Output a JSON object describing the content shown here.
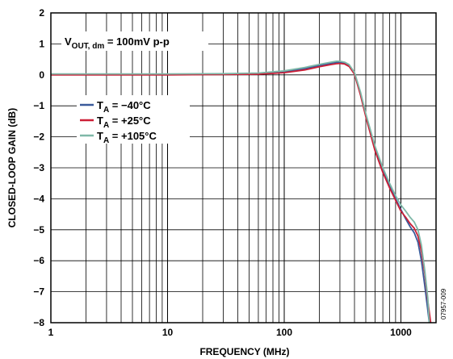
{
  "chart_data": {
    "type": "line",
    "title": "",
    "xlabel": "FREQUENCY (MHz)",
    "ylabel": "CLOSED-LOOP GAIN (dB)",
    "x_scale": "log",
    "xlim": [
      1,
      2000
    ],
    "ylim": [
      -8,
      2
    ],
    "x_ticks": [
      1,
      10,
      100,
      1000
    ],
    "x_tick_labels": [
      "1",
      "10",
      "100",
      "1000"
    ],
    "y_ticks": [
      2,
      1,
      0,
      -1,
      -2,
      -3,
      -4,
      -5,
      -6,
      -7,
      -8
    ],
    "y_tick_labels": [
      "2",
      "1",
      "0",
      "−1",
      "−2",
      "−3",
      "−4",
      "−5",
      "−6",
      "−7",
      "−8"
    ],
    "grid": true,
    "legend_position": "left-middle",
    "annotation": {
      "main": "V",
      "sub": "OUT, dm",
      "rest": " = 100mV p-p"
    },
    "figure_id": "07957-009",
    "series": [
      {
        "name": "T_A = −40°C",
        "label_main": "T",
        "label_sub": "A",
        "label_rest": " = −40°C",
        "color": "#3a5a9a",
        "points": [
          [
            1,
            0.02
          ],
          [
            3,
            0.02
          ],
          [
            10,
            0.02
          ],
          [
            30,
            0.03
          ],
          [
            60,
            0.04
          ],
          [
            100,
            0.1
          ],
          [
            150,
            0.2
          ],
          [
            200,
            0.3
          ],
          [
            250,
            0.37
          ],
          [
            280,
            0.4
          ],
          [
            300,
            0.4
          ],
          [
            330,
            0.38
          ],
          [
            360,
            0.3
          ],
          [
            400,
            0.05
          ],
          [
            450,
            -0.6
          ],
          [
            500,
            -1.3
          ],
          [
            600,
            -2.4
          ],
          [
            700,
            -3.1
          ],
          [
            800,
            -3.6
          ],
          [
            900,
            -4.0
          ],
          [
            1000,
            -4.35
          ],
          [
            1100,
            -4.65
          ],
          [
            1200,
            -4.9
          ],
          [
            1300,
            -5.1
          ],
          [
            1400,
            -5.4
          ],
          [
            1500,
            -6.0
          ],
          [
            1600,
            -6.8
          ],
          [
            1700,
            -7.6
          ],
          [
            1750,
            -8.0
          ]
        ]
      },
      {
        "name": "T_A = +25°C",
        "label_main": "T",
        "label_sub": "A",
        "label_rest": " = +25°C",
        "color": "#cc1f36",
        "points": [
          [
            1,
            0.0
          ],
          [
            3,
            0.0
          ],
          [
            10,
            0.0
          ],
          [
            30,
            0.01
          ],
          [
            60,
            0.02
          ],
          [
            100,
            0.07
          ],
          [
            150,
            0.16
          ],
          [
            200,
            0.26
          ],
          [
            250,
            0.33
          ],
          [
            280,
            0.36
          ],
          [
            300,
            0.37
          ],
          [
            330,
            0.35
          ],
          [
            360,
            0.27
          ],
          [
            400,
            0.02
          ],
          [
            450,
            -0.65
          ],
          [
            500,
            -1.35
          ],
          [
            600,
            -2.45
          ],
          [
            700,
            -3.15
          ],
          [
            800,
            -3.65
          ],
          [
            900,
            -4.05
          ],
          [
            1000,
            -4.4
          ],
          [
            1100,
            -4.6
          ],
          [
            1200,
            -4.8
          ],
          [
            1300,
            -4.95
          ],
          [
            1400,
            -5.2
          ],
          [
            1500,
            -5.7
          ],
          [
            1600,
            -6.4
          ],
          [
            1700,
            -7.3
          ],
          [
            1800,
            -8.0
          ]
        ]
      },
      {
        "name": "T_A = +105°C",
        "label_main": "T",
        "label_sub": "A",
        "label_rest": " = +105°C",
        "color": "#7fb8a8",
        "points": [
          [
            1,
            0.03
          ],
          [
            3,
            0.03
          ],
          [
            10,
            0.03
          ],
          [
            30,
            0.04
          ],
          [
            60,
            0.06
          ],
          [
            100,
            0.13
          ],
          [
            150,
            0.24
          ],
          [
            200,
            0.34
          ],
          [
            250,
            0.41
          ],
          [
            280,
            0.44
          ],
          [
            300,
            0.44
          ],
          [
            330,
            0.41
          ],
          [
            360,
            0.33
          ],
          [
            400,
            0.08
          ],
          [
            450,
            -0.55
          ],
          [
            500,
            -1.25
          ],
          [
            600,
            -2.3
          ],
          [
            700,
            -3.0
          ],
          [
            800,
            -3.5
          ],
          [
            900,
            -3.9
          ],
          [
            1000,
            -4.2
          ],
          [
            1100,
            -4.4
          ],
          [
            1200,
            -4.6
          ],
          [
            1300,
            -4.75
          ],
          [
            1400,
            -5.0
          ],
          [
            1500,
            -5.5
          ],
          [
            1600,
            -6.3
          ],
          [
            1700,
            -7.2
          ],
          [
            1750,
            -8.0
          ]
        ]
      }
    ]
  }
}
